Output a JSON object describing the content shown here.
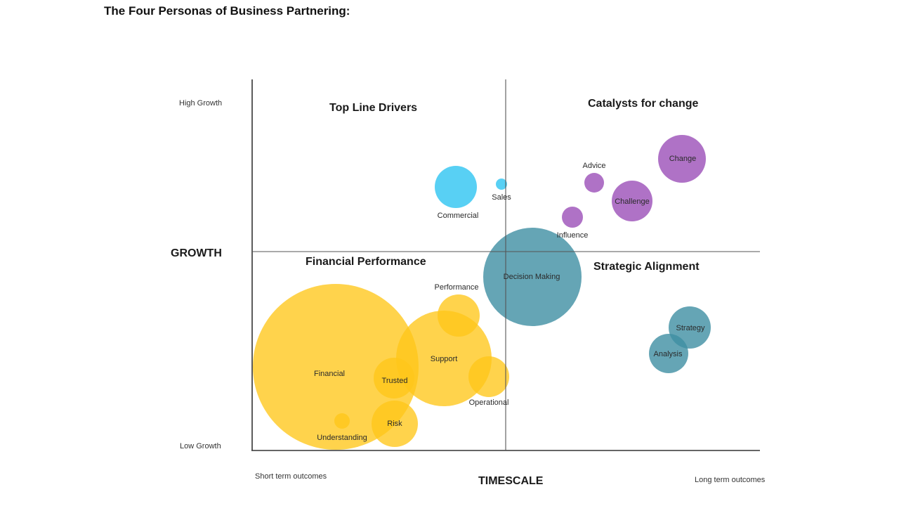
{
  "title": "The Four Personas of Business Partnering:",
  "axes": {
    "y_title": "GROWTH",
    "y_high": "High Growth",
    "y_low": "Low Growth",
    "x_title": "TIMESCALE",
    "x_short": "Short term outcomes",
    "x_long": "Long term outcomes"
  },
  "quadrants": {
    "top_left": "Top Line Drivers",
    "top_right": "Catalysts for change",
    "bottom_left": "Financial Performance",
    "bottom_right": "Strategic Alignment"
  },
  "colors": {
    "yellow": "#FFC61A",
    "blue": "#2EC4F1",
    "purple": "#9B4FB8",
    "teal": "#3E8EA3"
  },
  "bubbles": [
    {
      "id": "financial",
      "label": "Financial",
      "color": "yellow"
    },
    {
      "id": "support",
      "label": "Support",
      "color": "yellow"
    },
    {
      "id": "performance",
      "label": "Performance",
      "color": "yellow"
    },
    {
      "id": "operational",
      "label": "Operational",
      "color": "yellow"
    },
    {
      "id": "trusted",
      "label": "Trusted",
      "color": "yellow"
    },
    {
      "id": "risk",
      "label": "Risk",
      "color": "yellow"
    },
    {
      "id": "understanding",
      "label": "Understanding",
      "color": "yellow"
    },
    {
      "id": "commercial",
      "label": "Commercial",
      "color": "blue"
    },
    {
      "id": "sales",
      "label": "Sales",
      "color": "blue"
    },
    {
      "id": "decision",
      "label": "Decision Making",
      "color": "teal"
    },
    {
      "id": "strategy",
      "label": "Strategy",
      "color": "teal"
    },
    {
      "id": "analysis",
      "label": "Analysis",
      "color": "teal"
    },
    {
      "id": "advice",
      "label": "Advice",
      "color": "purple"
    },
    {
      "id": "influence",
      "label": "Influence",
      "color": "purple"
    },
    {
      "id": "challenge",
      "label": "Challenge",
      "color": "purple"
    },
    {
      "id": "change",
      "label": "Change",
      "color": "purple"
    }
  ]
}
